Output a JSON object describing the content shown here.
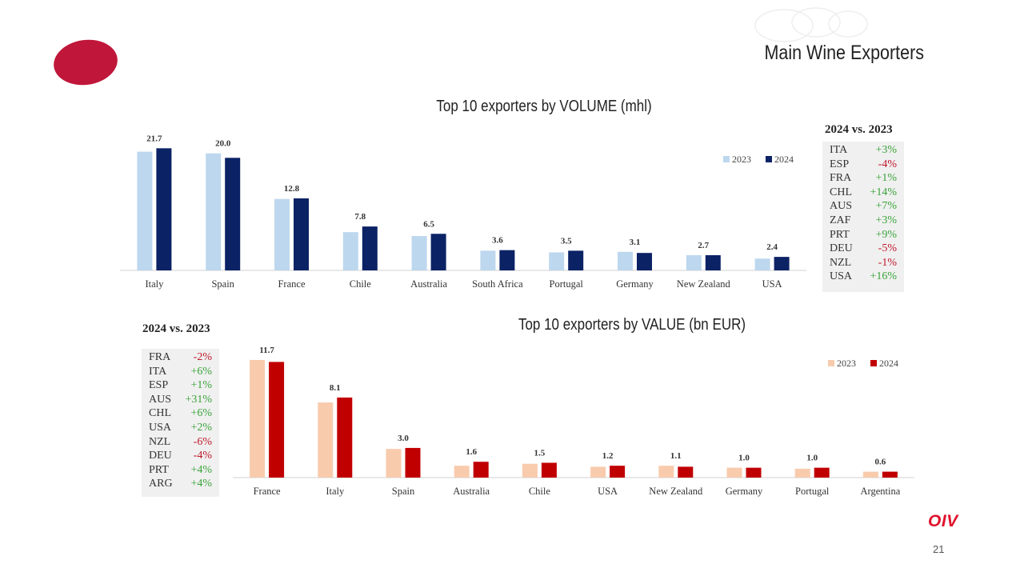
{
  "header": {
    "title": "Main Wine Exporters"
  },
  "footer": {
    "logo_text": "OIV",
    "page_number": "21"
  },
  "colors": {
    "logo_red": "#c0163a",
    "vol_2023": "#bdd7ee",
    "vol_2024": "#0b2265",
    "val_2023": "#f8cbad",
    "val_2024": "#c00000",
    "positive": "#3aa43a",
    "negative": "#c0172b"
  },
  "volume_comparison": {
    "heading": "2024 vs. 2023",
    "rows": [
      {
        "code": "ITA",
        "change": "+3%",
        "dir": "pos"
      },
      {
        "code": "ESP",
        "change": "-4%",
        "dir": "neg"
      },
      {
        "code": "FRA",
        "change": "+1%",
        "dir": "pos"
      },
      {
        "code": "CHL",
        "change": "+14%",
        "dir": "pos"
      },
      {
        "code": "AUS",
        "change": "+7%",
        "dir": "pos"
      },
      {
        "code": "ZAF",
        "change": "+3%",
        "dir": "pos"
      },
      {
        "code": "PRT",
        "change": "+9%",
        "dir": "pos"
      },
      {
        "code": "DEU",
        "change": "-5%",
        "dir": "neg"
      },
      {
        "code": "NZL",
        "change": "-1%",
        "dir": "neg"
      },
      {
        "code": "USA",
        "change": "+16%",
        "dir": "pos"
      }
    ]
  },
  "value_comparison": {
    "heading": "2024 vs. 2023",
    "rows": [
      {
        "code": "FRA",
        "change": "-2%",
        "dir": "neg"
      },
      {
        "code": "ITA",
        "change": "+6%",
        "dir": "pos"
      },
      {
        "code": "ESP",
        "change": "+1%",
        "dir": "pos"
      },
      {
        "code": "AUS",
        "change": "+31%",
        "dir": "pos"
      },
      {
        "code": "CHL",
        "change": "+6%",
        "dir": "pos"
      },
      {
        "code": "USA",
        "change": "+2%",
        "dir": "pos"
      },
      {
        "code": "NZL",
        "change": "-6%",
        "dir": "neg"
      },
      {
        "code": "DEU",
        "change": "-4%",
        "dir": "neg"
      },
      {
        "code": "PRT",
        "change": "+4%",
        "dir": "pos"
      },
      {
        "code": "ARG",
        "change": "+4%",
        "dir": "pos"
      }
    ]
  },
  "chart_data": [
    {
      "id": "volume",
      "type": "bar",
      "title": "Top 10 exporters by VOLUME (mhl)",
      "categories": [
        "Italy",
        "Spain",
        "France",
        "Chile",
        "Australia",
        "South Africa",
        "Portugal",
        "Germany",
        "New Zealand",
        "USA"
      ],
      "series": [
        {
          "name": "2023",
          "values": [
            21.1,
            20.8,
            12.7,
            6.8,
            6.1,
            3.5,
            3.2,
            3.3,
            2.7,
            2.1
          ],
          "color": "#bdd7ee"
        },
        {
          "name": "2024",
          "values": [
            21.7,
            20.0,
            12.8,
            7.8,
            6.5,
            3.6,
            3.5,
            3.1,
            2.7,
            2.4
          ],
          "color": "#0b2265"
        }
      ],
      "data_labels": [
        "21.7",
        "20.0",
        "12.8",
        "7.8",
        "6.5",
        "3.6",
        "3.5",
        "3.1",
        "2.7",
        "2.4"
      ],
      "ylim": [
        0,
        22.6
      ],
      "legend": "top-right",
      "xlabel": "",
      "ylabel": ""
    },
    {
      "id": "value",
      "type": "bar",
      "title": "Top 10 exporters  by VALUE (bn EUR)",
      "categories": [
        "France",
        "Italy",
        "Spain",
        "Australia",
        "Chile",
        "USA",
        "New Zealand",
        "Germany",
        "Portugal",
        "Argentina"
      ],
      "series": [
        {
          "name": "2023",
          "values": [
            11.9,
            7.6,
            2.9,
            1.2,
            1.4,
            1.1,
            1.2,
            1.0,
            0.9,
            0.6
          ],
          "color": "#f8cbad"
        },
        {
          "name": "2024",
          "values": [
            11.7,
            8.1,
            3.0,
            1.6,
            1.5,
            1.2,
            1.1,
            1.0,
            1.0,
            0.6
          ],
          "color": "#c00000"
        }
      ],
      "data_labels": [
        "11.7",
        "8.1",
        "3.0",
        "1.6",
        "1.5",
        "1.2",
        "1.1",
        "1.0",
        "1.0",
        "0.6"
      ],
      "ylim": [
        0,
        12.3
      ],
      "legend": "top-right",
      "xlabel": "",
      "ylabel": ""
    }
  ]
}
